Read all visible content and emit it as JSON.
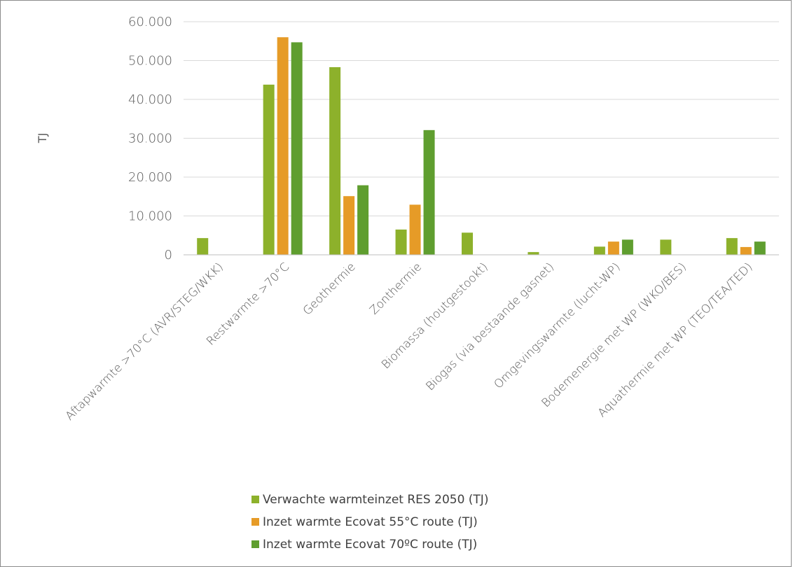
{
  "chart_data": {
    "type": "bar",
    "ylabel": "TJ",
    "xlabel": "",
    "ylim": [
      0,
      60000
    ],
    "yticks": [
      0,
      10000,
      20000,
      30000,
      40000,
      50000,
      60000
    ],
    "ytick_labels": [
      "0",
      "10.000",
      "20.000",
      "30.000",
      "40.000",
      "50.000",
      "60.000"
    ],
    "grid": true,
    "legend_position": "bottom",
    "categories": [
      "Aftapwarmte >70°C (AVR/STEG/WKK)",
      "Restwarmte >70°C",
      "Geothermie",
      "Zonthermie",
      "Biomassa (houtgestookt)",
      "Biogas (via bestaande gasnet)",
      "Omgevingswarmte (lucht-WP)",
      "Bodemenergie met WP (WKO/BES)",
      "Aquathermie met WP (TEO/TEA/TED)"
    ],
    "series": [
      {
        "name": "Verwachte warmteinzet RES 2050 (TJ)",
        "color": "#8db12b",
        "values": [
          4300,
          43800,
          48300,
          6500,
          5700,
          700,
          2100,
          3900,
          4300
        ]
      },
      {
        "name": "Inzet warmte Ecovat 55°C route (TJ)",
        "color": "#e69b27",
        "values": [
          0,
          56000,
          15100,
          12900,
          0,
          0,
          3400,
          0,
          2000
        ]
      },
      {
        "name": "Inzet warmte Ecovat 70ºC route (TJ)",
        "color": "#5f9e2f",
        "values": [
          0,
          54700,
          17900,
          32100,
          0,
          0,
          3900,
          0,
          3400
        ]
      }
    ]
  }
}
